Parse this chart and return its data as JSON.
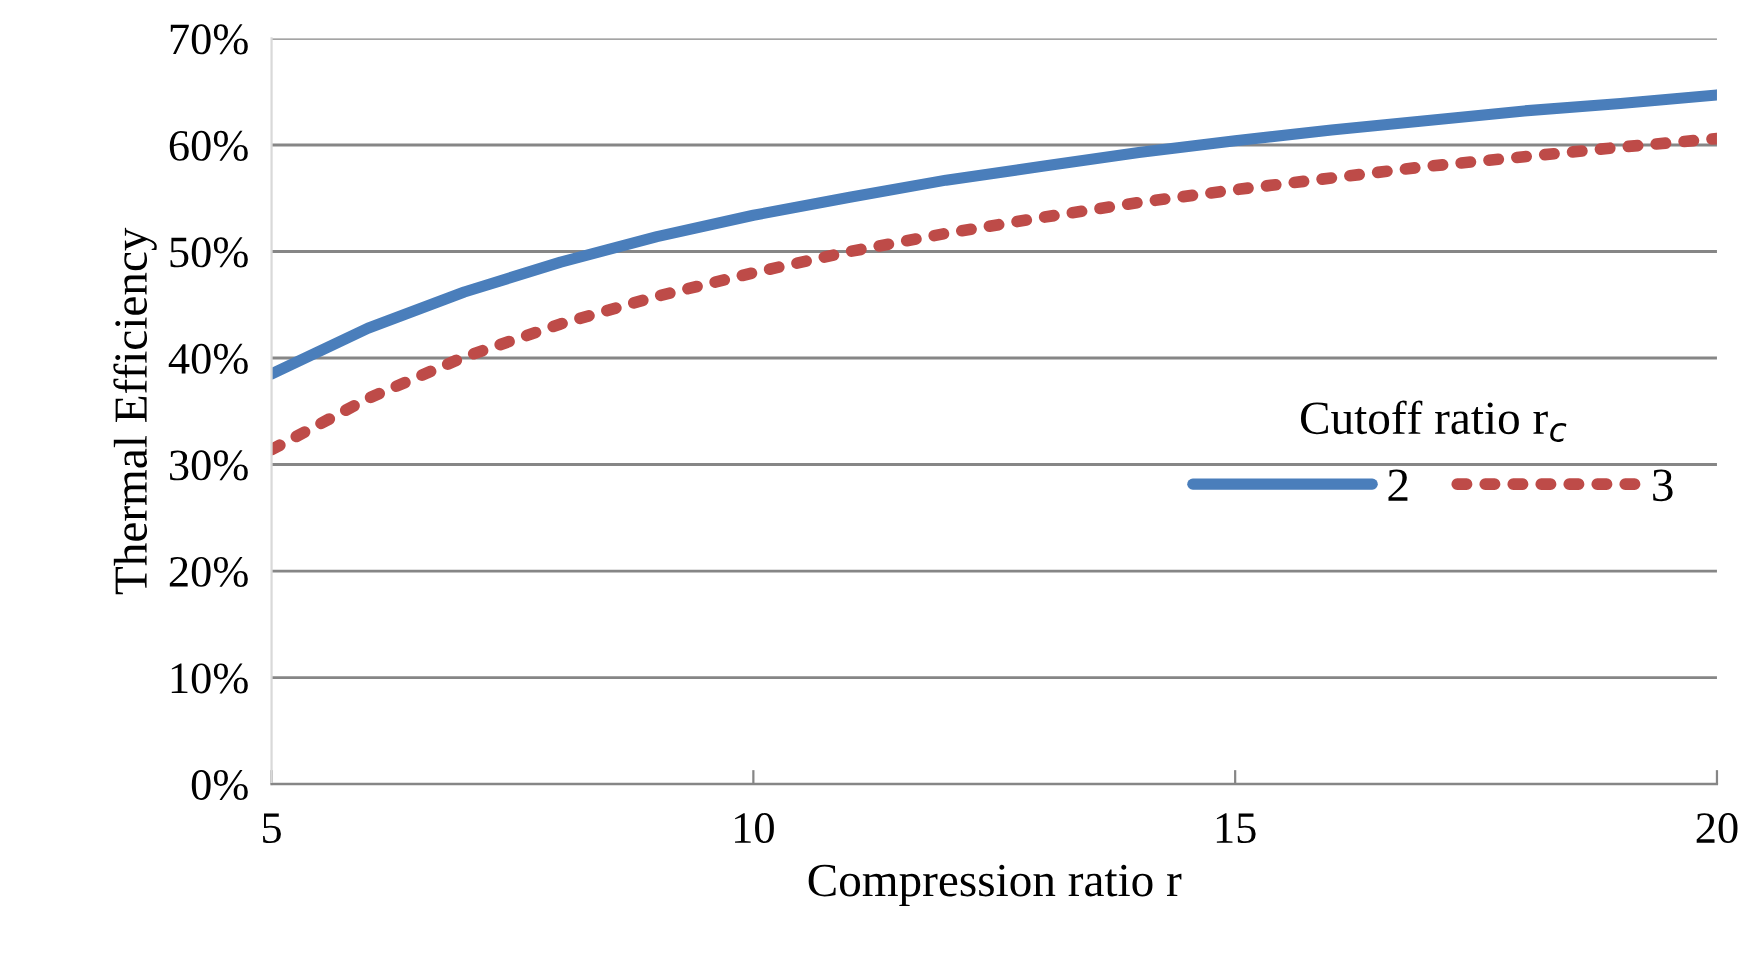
{
  "chart_data": {
    "type": "line",
    "xlabel": "Compression ratio r",
    "ylabel": "Thermal Efficiency",
    "legend_title": "Cutoff ratio r$_{c}$",
    "x": [
      5,
      6,
      7,
      8,
      9,
      10,
      11,
      12,
      13,
      14,
      15,
      16,
      17,
      18,
      19,
      20
    ],
    "series": [
      {
        "name": "2",
        "color": "#4a7ebb",
        "line_style": "solid",
        "values": [
          38.5,
          42.8,
          46.2,
          49.0,
          51.4,
          53.4,
          55.1,
          56.7,
          58.0,
          59.3,
          60.4,
          61.4,
          62.3,
          63.2,
          63.9,
          64.7
        ]
      },
      {
        "name": "3",
        "color": "#be4b48",
        "line_style": "dotted",
        "values": [
          31.4,
          36.2,
          40.1,
          43.2,
          45.8,
          48.0,
          50.0,
          51.7,
          53.2,
          54.6,
          55.8,
          56.9,
          58.0,
          58.9,
          59.8,
          60.6
        ]
      }
    ],
    "xlim": [
      5,
      20
    ],
    "xticks": [
      5,
      10,
      15,
      20
    ],
    "ylim": [
      0,
      70
    ],
    "yticks": [
      {
        "value": 0,
        "label": "0%"
      },
      {
        "value": 10,
        "label": "10%"
      },
      {
        "value": 20,
        "label": "20%"
      },
      {
        "value": 30,
        "label": "30%"
      },
      {
        "value": 40,
        "label": "40%"
      },
      {
        "value": 50,
        "label": "50%"
      },
      {
        "value": 60,
        "label": "60%"
      },
      {
        "value": 70,
        "label": "70%"
      }
    ],
    "grid": "y",
    "legend": "right",
    "marker": "none"
  }
}
